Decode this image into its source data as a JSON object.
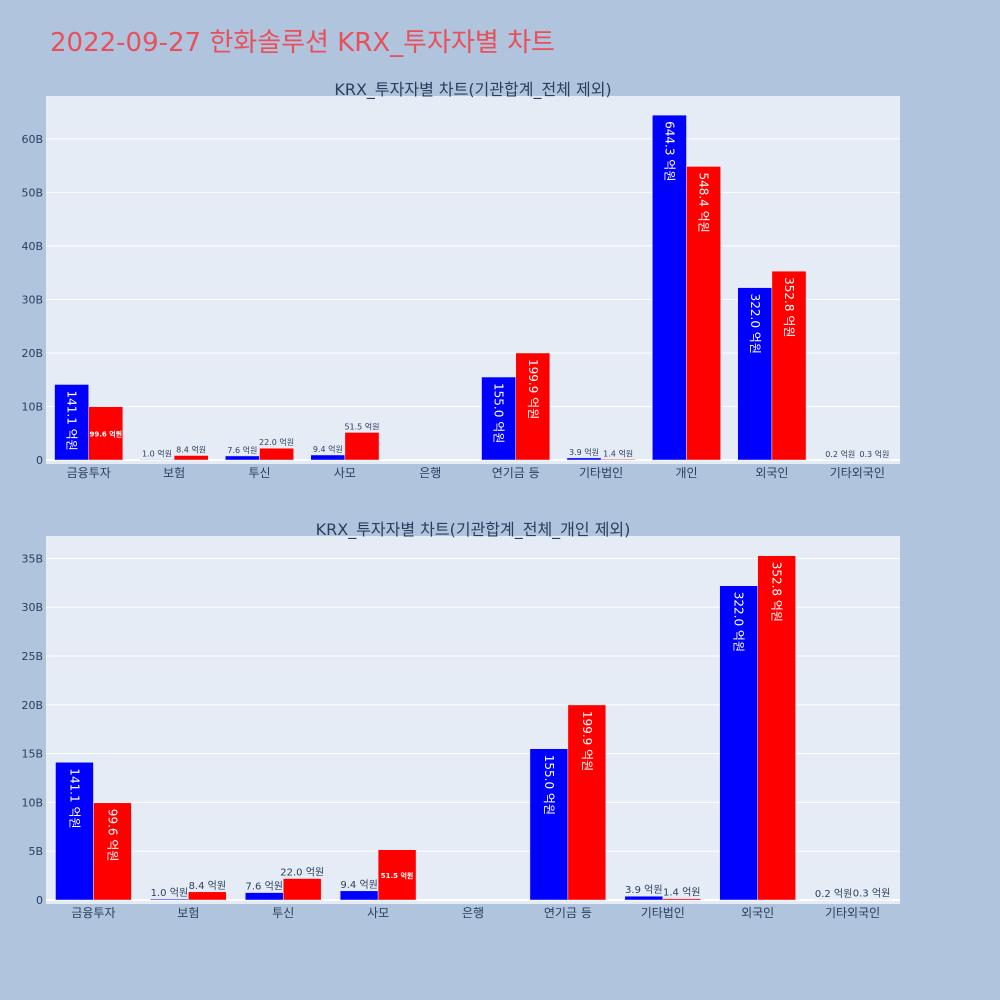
{
  "page": {
    "title": "2022-09-27 한화솔루션 KRX_투자자별 차트",
    "title_color": "#e8505b",
    "background": "#b0c4de",
    "plot_background": "#e5ecf6"
  },
  "chart_data": [
    {
      "type": "bar",
      "title": "KRX_투자자별 차트(기관합계_전체 제외)",
      "categories": [
        "금융투자",
        "보험",
        "투신",
        "사모",
        "은행",
        "연기금 등",
        "기타법인",
        "개인",
        "외국인",
        "기타외국인"
      ],
      "ylim": [
        0,
        68000000000
      ],
      "yticks": [
        0,
        10000000000,
        20000000000,
        30000000000,
        40000000000,
        50000000000,
        60000000000
      ],
      "ytick_labels": [
        "0",
        "10B",
        "20B",
        "30B",
        "40B",
        "50B",
        "60B"
      ],
      "grid": true,
      "series": [
        {
          "color": "#0000ff",
          "values": [
            14110000000,
            100000000,
            760000000,
            940000000,
            0,
            15500000000,
            390000000,
            64430000000,
            32200000000,
            20000000
          ],
          "labels": [
            "141.1 억원",
            "1.0 억원",
            "7.6 억원",
            "9.4 억원",
            "",
            "155.0 억원",
            "3.9 억원",
            "644.3 억원",
            "322.0 억원",
            "0.2 억원"
          ]
        },
        {
          "color": "#ff0000",
          "values": [
            9960000000,
            840000000,
            2200000000,
            5150000000,
            0,
            19990000000,
            140000000,
            54840000000,
            35280000000,
            30000000
          ],
          "labels": [
            "99.6 억원",
            "8.4 억원",
            "22.0 억원",
            "51.5 억원",
            "",
            "199.9 억원",
            "1.4 억원",
            "548.4 억원",
            "352.8 억원",
            "0.3 억원"
          ]
        }
      ]
    },
    {
      "type": "bar",
      "title": "KRX_투자자별 차트(기관합계_전체_개인 제외)",
      "categories": [
        "금융투자",
        "보험",
        "투신",
        "사모",
        "은행",
        "연기금 등",
        "기타법인",
        "외국인",
        "기타외국인"
      ],
      "ylim": [
        0,
        37300000000
      ],
      "yticks": [
        0,
        5000000000,
        10000000000,
        15000000000,
        20000000000,
        25000000000,
        30000000000,
        35000000000
      ],
      "ytick_labels": [
        "0",
        "5B",
        "10B",
        "15B",
        "20B",
        "25B",
        "30B",
        "35B"
      ],
      "grid": true,
      "series": [
        {
          "color": "#0000ff",
          "values": [
            14110000000,
            100000000,
            760000000,
            940000000,
            0,
            15500000000,
            390000000,
            32200000000,
            20000000
          ],
          "labels": [
            "141.1 억원",
            "1.0 억원",
            "7.6 억원",
            "9.4 억원",
            "",
            "155.0 억원",
            "3.9 억원",
            "322.0 억원",
            "0.2 억원"
          ]
        },
        {
          "color": "#ff0000",
          "values": [
            9960000000,
            840000000,
            2200000000,
            5150000000,
            0,
            19990000000,
            140000000,
            35280000000,
            30000000
          ],
          "labels": [
            "99.6 억원",
            "8.4 억원",
            "22.0 억원",
            "51.5 억원",
            "",
            "199.9 억원",
            "1.4 억원",
            "352.8 억원",
            "0.3 억원"
          ]
        }
      ]
    }
  ]
}
